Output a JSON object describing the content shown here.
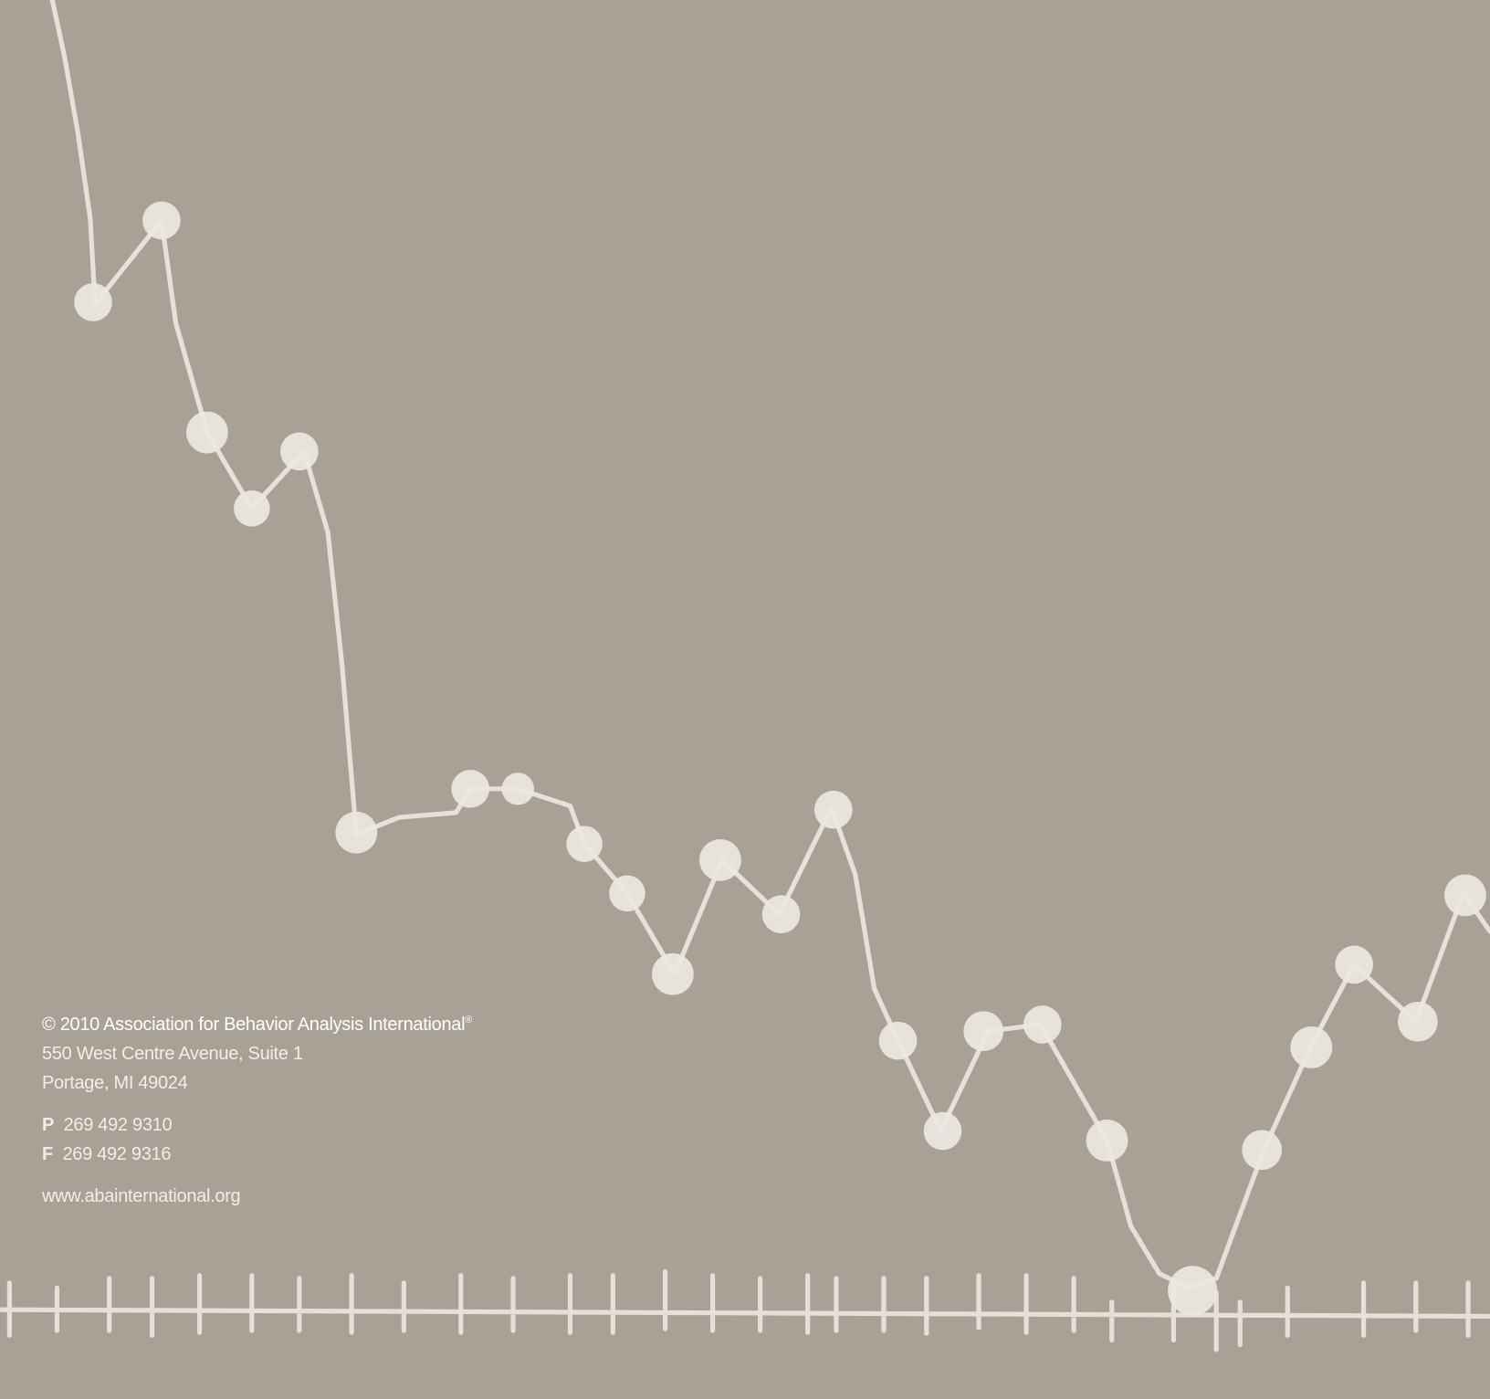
{
  "copyright": {
    "text": "© 2010 Association for Behavior Analysis International",
    "mark": "®"
  },
  "address": [
    "550 West Centre Avenue, Suite 1",
    "Portage, MI  49024"
  ],
  "phone": {
    "label": "P",
    "number": "269 492 9310"
  },
  "fax": {
    "label": "F",
    "number": "269 492 9316"
  },
  "website": "www.abainternational.org"
}
